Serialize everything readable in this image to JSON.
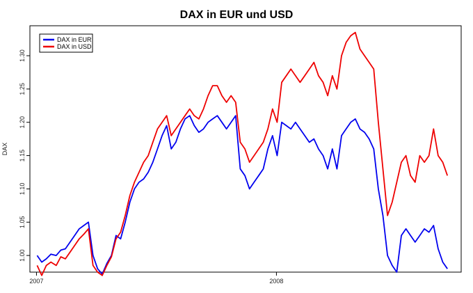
{
  "chart_data": {
    "type": "line",
    "title": "DAX in EUR und USD",
    "xlabel": "",
    "ylabel": "DAX",
    "x_ticks": [
      "2007",
      "2008"
    ],
    "y_ticks": [
      "1.00",
      "1.05",
      "1.10",
      "1.15",
      "1.20",
      "1.25",
      "1.30"
    ],
    "ylim": [
      0.975,
      1.345
    ],
    "legend_position": "top-left",
    "grid": false,
    "series": [
      {
        "name": "DAX in EUR",
        "color": "#0000ee",
        "points": [
          [
            "2007-01-02",
            1.0
          ],
          [
            "2007-01-09",
            0.99
          ],
          [
            "2007-01-16",
            0.995
          ],
          [
            "2007-01-23",
            1.002
          ],
          [
            "2007-01-31",
            1.0
          ],
          [
            "2007-02-07",
            1.008
          ],
          [
            "2007-02-14",
            1.01
          ],
          [
            "2007-02-21",
            1.02
          ],
          [
            "2007-02-28",
            1.03
          ],
          [
            "2007-03-07",
            1.04
          ],
          [
            "2007-03-14",
            1.045
          ],
          [
            "2007-03-21",
            1.05
          ],
          [
            "2007-03-28",
            1.0
          ],
          [
            "2007-04-04",
            0.98
          ],
          [
            "2007-04-11",
            0.972
          ],
          [
            "2007-04-18",
            0.988
          ],
          [
            "2007-04-25",
            1.0
          ],
          [
            "2007-05-02",
            1.03
          ],
          [
            "2007-05-09",
            1.025
          ],
          [
            "2007-05-16",
            1.05
          ],
          [
            "2007-05-23",
            1.08
          ],
          [
            "2007-05-30",
            1.1
          ],
          [
            "2007-06-06",
            1.11
          ],
          [
            "2007-06-13",
            1.115
          ],
          [
            "2007-06-20",
            1.125
          ],
          [
            "2007-06-27",
            1.14
          ],
          [
            "2007-07-04",
            1.16
          ],
          [
            "2007-07-11",
            1.18
          ],
          [
            "2007-07-18",
            1.195
          ],
          [
            "2007-07-25",
            1.16
          ],
          [
            "2007-08-01",
            1.17
          ],
          [
            "2007-08-08",
            1.19
          ],
          [
            "2007-08-15",
            1.205
          ],
          [
            "2007-08-22",
            1.21
          ],
          [
            "2007-08-29",
            1.195
          ],
          [
            "2007-09-05",
            1.185
          ],
          [
            "2007-09-12",
            1.19
          ],
          [
            "2007-09-19",
            1.2
          ],
          [
            "2007-09-26",
            1.205
          ],
          [
            "2007-10-03",
            1.21
          ],
          [
            "2007-10-10",
            1.2
          ],
          [
            "2007-10-17",
            1.19
          ],
          [
            "2007-10-24",
            1.2
          ],
          [
            "2007-10-31",
            1.21
          ],
          [
            "2007-11-07",
            1.13
          ],
          [
            "2007-11-14",
            1.12
          ],
          [
            "2007-11-21",
            1.1
          ],
          [
            "2007-11-28",
            1.11
          ],
          [
            "2007-12-05",
            1.12
          ],
          [
            "2007-12-12",
            1.13
          ],
          [
            "2007-12-19",
            1.16
          ],
          [
            "2007-12-26",
            1.18
          ],
          [
            "2008-01-02",
            1.15
          ],
          [
            "2008-01-09",
            1.2
          ],
          [
            "2008-01-16",
            1.195
          ],
          [
            "2008-01-23",
            1.19
          ],
          [
            "2008-01-30",
            1.2
          ],
          [
            "2008-02-06",
            1.19
          ],
          [
            "2008-02-13",
            1.18
          ],
          [
            "2008-02-20",
            1.17
          ],
          [
            "2008-02-27",
            1.175
          ],
          [
            "2008-03-05",
            1.16
          ],
          [
            "2008-03-12",
            1.15
          ],
          [
            "2008-03-19",
            1.13
          ],
          [
            "2008-03-26",
            1.16
          ],
          [
            "2008-04-02",
            1.13
          ],
          [
            "2008-04-09",
            1.18
          ],
          [
            "2008-04-16",
            1.19
          ],
          [
            "2008-04-23",
            1.2
          ],
          [
            "2008-04-30",
            1.205
          ],
          [
            "2008-05-07",
            1.19
          ],
          [
            "2008-05-14",
            1.185
          ],
          [
            "2008-05-21",
            1.175
          ],
          [
            "2008-05-28",
            1.16
          ],
          [
            "2008-06-04",
            1.1
          ],
          [
            "2008-06-11",
            1.06
          ],
          [
            "2008-06-18",
            1.0
          ],
          [
            "2008-06-25",
            0.985
          ],
          [
            "2008-07-02",
            0.975
          ],
          [
            "2008-07-09",
            1.03
          ],
          [
            "2008-07-16",
            1.04
          ],
          [
            "2008-07-23",
            1.03
          ],
          [
            "2008-07-30",
            1.02
          ],
          [
            "2008-08-06",
            1.03
          ],
          [
            "2008-08-13",
            1.04
          ],
          [
            "2008-08-20",
            1.035
          ],
          [
            "2008-08-27",
            1.045
          ],
          [
            "2008-09-03",
            1.01
          ],
          [
            "2008-09-10",
            0.99
          ],
          [
            "2008-09-17",
            0.98
          ]
        ]
      },
      {
        "name": "DAX in USD",
        "color": "#ee0000",
        "points": [
          [
            "2007-01-02",
            0.985
          ],
          [
            "2007-01-09",
            0.97
          ],
          [
            "2007-01-16",
            0.985
          ],
          [
            "2007-01-23",
            0.99
          ],
          [
            "2007-01-31",
            0.985
          ],
          [
            "2007-02-07",
            0.998
          ],
          [
            "2007-02-14",
            0.995
          ],
          [
            "2007-02-21",
            1.005
          ],
          [
            "2007-02-28",
            1.015
          ],
          [
            "2007-03-07",
            1.025
          ],
          [
            "2007-03-14",
            1.032
          ],
          [
            "2007-03-21",
            1.04
          ],
          [
            "2007-03-28",
            0.985
          ],
          [
            "2007-04-04",
            0.975
          ],
          [
            "2007-04-11",
            0.97
          ],
          [
            "2007-04-18",
            0.985
          ],
          [
            "2007-04-25",
            0.998
          ],
          [
            "2007-05-02",
            1.025
          ],
          [
            "2007-05-09",
            1.035
          ],
          [
            "2007-05-16",
            1.06
          ],
          [
            "2007-05-23",
            1.09
          ],
          [
            "2007-05-30",
            1.11
          ],
          [
            "2007-06-06",
            1.125
          ],
          [
            "2007-06-13",
            1.14
          ],
          [
            "2007-06-20",
            1.15
          ],
          [
            "2007-06-27",
            1.17
          ],
          [
            "2007-07-04",
            1.19
          ],
          [
            "2007-07-11",
            1.2
          ],
          [
            "2007-07-18",
            1.21
          ],
          [
            "2007-07-25",
            1.18
          ],
          [
            "2007-08-01",
            1.19
          ],
          [
            "2007-08-08",
            1.2
          ],
          [
            "2007-08-15",
            1.21
          ],
          [
            "2007-08-22",
            1.22
          ],
          [
            "2007-08-29",
            1.21
          ],
          [
            "2007-09-05",
            1.205
          ],
          [
            "2007-09-12",
            1.22
          ],
          [
            "2007-09-19",
            1.24
          ],
          [
            "2007-09-26",
            1.255
          ],
          [
            "2007-10-03",
            1.255
          ],
          [
            "2007-10-10",
            1.24
          ],
          [
            "2007-10-17",
            1.23
          ],
          [
            "2007-10-24",
            1.24
          ],
          [
            "2007-10-31",
            1.23
          ],
          [
            "2007-11-07",
            1.17
          ],
          [
            "2007-11-14",
            1.16
          ],
          [
            "2007-11-21",
            1.14
          ],
          [
            "2007-11-28",
            1.15
          ],
          [
            "2007-12-05",
            1.16
          ],
          [
            "2007-12-12",
            1.17
          ],
          [
            "2007-12-19",
            1.19
          ],
          [
            "2007-12-26",
            1.22
          ],
          [
            "2008-01-02",
            1.2
          ],
          [
            "2008-01-09",
            1.26
          ],
          [
            "2008-01-16",
            1.27
          ],
          [
            "2008-01-23",
            1.28
          ],
          [
            "2008-01-30",
            1.27
          ],
          [
            "2008-02-06",
            1.26
          ],
          [
            "2008-02-13",
            1.27
          ],
          [
            "2008-02-20",
            1.28
          ],
          [
            "2008-02-27",
            1.29
          ],
          [
            "2008-03-05",
            1.27
          ],
          [
            "2008-03-12",
            1.26
          ],
          [
            "2008-03-19",
            1.24
          ],
          [
            "2008-03-26",
            1.27
          ],
          [
            "2008-04-02",
            1.25
          ],
          [
            "2008-04-09",
            1.3
          ],
          [
            "2008-04-16",
            1.32
          ],
          [
            "2008-04-23",
            1.33
          ],
          [
            "2008-04-30",
            1.335
          ],
          [
            "2008-05-07",
            1.31
          ],
          [
            "2008-05-14",
            1.3
          ],
          [
            "2008-05-21",
            1.29
          ],
          [
            "2008-05-28",
            1.28
          ],
          [
            "2008-06-04",
            1.2
          ],
          [
            "2008-06-11",
            1.13
          ],
          [
            "2008-06-18",
            1.06
          ],
          [
            "2008-06-25",
            1.08
          ],
          [
            "2008-07-02",
            1.11
          ],
          [
            "2008-07-09",
            1.14
          ],
          [
            "2008-07-16",
            1.15
          ],
          [
            "2008-07-23",
            1.12
          ],
          [
            "2008-07-30",
            1.11
          ],
          [
            "2008-08-06",
            1.15
          ],
          [
            "2008-08-13",
            1.14
          ],
          [
            "2008-08-20",
            1.15
          ],
          [
            "2008-08-27",
            1.19
          ],
          [
            "2008-09-03",
            1.15
          ],
          [
            "2008-09-10",
            1.14
          ],
          [
            "2008-09-17",
            1.12
          ]
        ]
      }
    ]
  }
}
